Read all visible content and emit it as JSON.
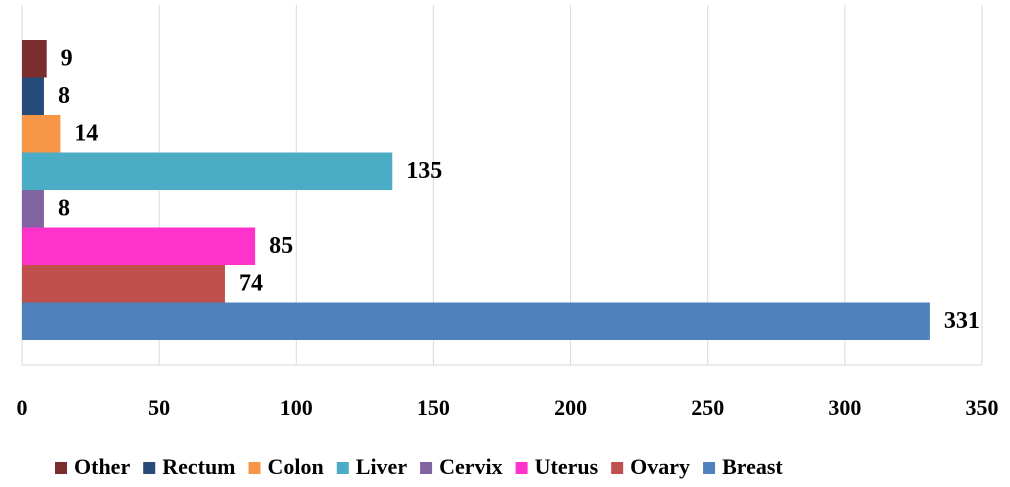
{
  "chart_data": {
    "type": "bar",
    "orientation": "horizontal",
    "series": [
      {
        "name": "Other",
        "color": "#7b2c2c",
        "values": [
          9
        ]
      },
      {
        "name": "Rectum",
        "color": "#264a7a",
        "values": [
          8
        ]
      },
      {
        "name": "Colon",
        "color": "#f79646",
        "values": [
          14
        ]
      },
      {
        "name": "Liver",
        "color": "#4bacc6",
        "values": [
          135
        ]
      },
      {
        "name": "Cervix",
        "color": "#8064a2",
        "values": [
          8
        ]
      },
      {
        "name": "Uterus",
        "color": "#ff33cc",
        "values": [
          85
        ]
      },
      {
        "name": "Ovary",
        "color": "#c0504d",
        "values": [
          74
        ]
      },
      {
        "name": "Breast",
        "color": "#4f81bd",
        "values": [
          331
        ]
      }
    ],
    "xlim": [
      0,
      350
    ],
    "xticks": [
      0,
      50,
      100,
      150,
      200,
      250,
      300,
      350
    ],
    "grid": true,
    "legend": "bottom"
  }
}
